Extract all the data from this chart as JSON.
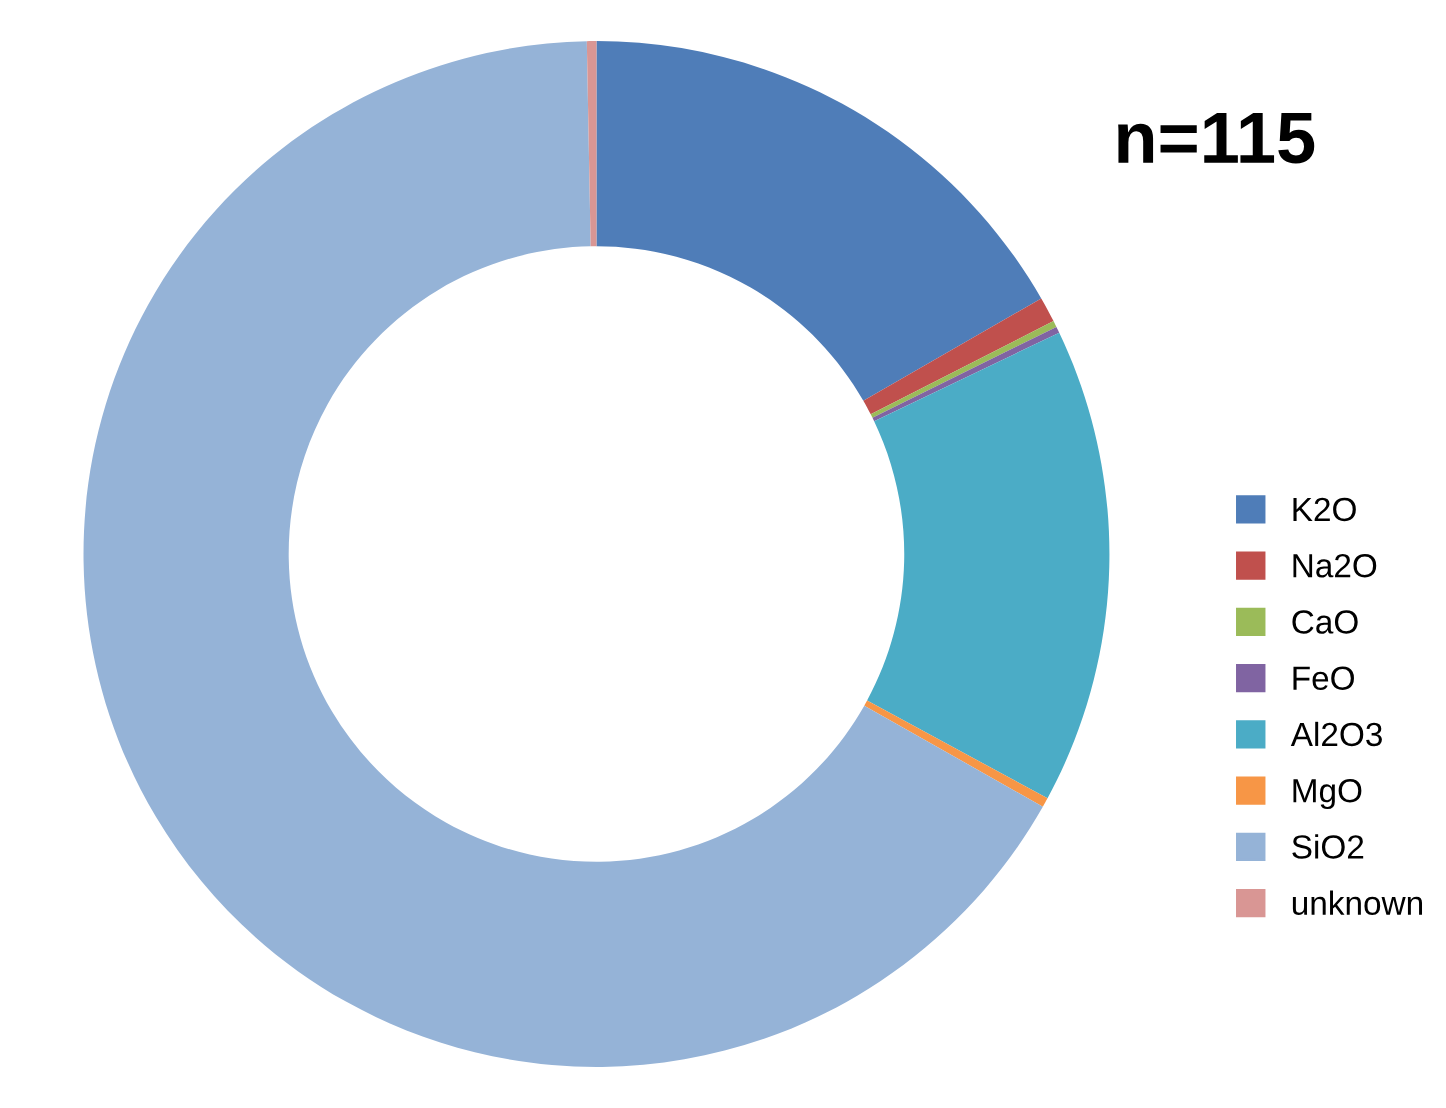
{
  "chart_data": {
    "type": "donut",
    "categories": [
      "K2O",
      "Na2O",
      "CaO",
      "FeO",
      "Al2O3",
      "MgO",
      "SiO2",
      "unknown"
    ],
    "values": [
      16.7,
      0.8,
      0.2,
      0.2,
      15,
      0.3,
      66.5,
      0.3
    ],
    "colors": [
      "#4f7db8",
      "#c0504d",
      "#9bbb59",
      "#8064a2",
      "#4bacc6",
      "#f79646",
      "#95b3d7",
      "#d99694"
    ],
    "annotations": [
      "n=115"
    ],
    "legend": "right"
  }
}
